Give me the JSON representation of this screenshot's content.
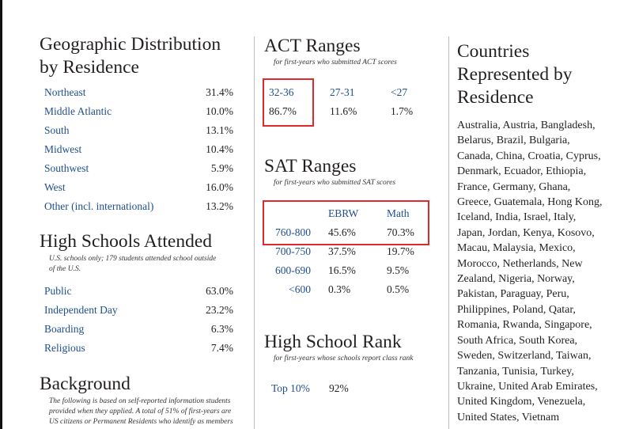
{
  "geo": {
    "title_line1": "Geographic Distribution",
    "title_line2": "by Residence",
    "rows": [
      {
        "label": "Northeast",
        "value": "31.4%"
      },
      {
        "label": "Middle Atlantic",
        "value": "10.0%"
      },
      {
        "label": "South",
        "value": "13.1%"
      },
      {
        "label": "Midwest",
        "value": "10.4%"
      },
      {
        "label": "Southwest",
        "value": "5.9%"
      },
      {
        "label": "West",
        "value": "16.0%"
      },
      {
        "label": "Other (incl. international)",
        "value": "13.2%"
      }
    ]
  },
  "hs": {
    "title": "High Schools Attended",
    "note_line1": "U.S. schools only; 179 students attended school outside",
    "note_line2": "of the U.S.",
    "rows": [
      {
        "label": "Public",
        "value": "63.0%"
      },
      {
        "label": "Independent Day",
        "value": "23.2%"
      },
      {
        "label": "Boarding",
        "value": "6.3%"
      },
      {
        "label": "Religious",
        "value": "7.4%"
      }
    ]
  },
  "background": {
    "title": "Background",
    "note_line1": "The following is based on self-reported information students",
    "note_line2": "provided when they applied. A total of 51% of first-years are",
    "note_line3": "US citizens or Permanent Residents who identify as members"
  },
  "act": {
    "title": "ACT Ranges",
    "note": "for first-years who submitted ACT scores",
    "ranges": [
      "32-36",
      "27-31",
      "<27"
    ],
    "values": [
      "86.7%",
      "11.6%",
      "1.7%"
    ]
  },
  "sat": {
    "title": "SAT Ranges",
    "note": "for first-years who submitted SAT scores",
    "headers": [
      "EBRW",
      "Math"
    ],
    "rows": [
      {
        "range": "760-800",
        "ebrw": "45.6%",
        "math": "70.3%"
      },
      {
        "range": "700-750",
        "ebrw": "37.5%",
        "math": "19.7%"
      },
      {
        "range": "600-690",
        "ebrw": "16.5%",
        "math": "9.5%"
      },
      {
        "range": "<600",
        "ebrw": "0.3%",
        "math": "0.5%"
      }
    ]
  },
  "rank": {
    "title": "High School Rank",
    "note": "for first-years whose schools report class rank",
    "label": "Top 10%",
    "value": "92%"
  },
  "countries": {
    "title_line1": "Countries",
    "title_line2": "Represented by",
    "title_line3": "Residence",
    "lines": [
      "Australia, Austria, Bangladesh,",
      "Belarus, Brazil, Bulgaria,",
      "Canada, China, Croatia, Cyprus,",
      "Denmark, Ecuador, Ethiopia,",
      "France, Germany, Ghana,",
      "Greece, Guatemala, Hong Kong,",
      "Iceland, India, Israel, Italy,",
      "Japan, Jordan, Kenya, Kosovo,",
      "Macau, Malaysia, Mexico,",
      "Morocco, Netherlands, New",
      "Zealand, Nigeria, Norway,",
      "Pakistan, Paraguay, Peru,",
      "Philippines, Poland, Qatar,",
      "Romania, Rwanda, Singapore,",
      "South Africa, South Korea,",
      "Sweden, Switzerland, Taiwan,",
      "Tanzania, Tunisia, Turkey,",
      "Ukraine, United Arab Emirates,",
      "United Kingdom, Venezuela,",
      "United States, Vietnam"
    ]
  },
  "colors": {
    "link": "#1f4e8c",
    "highlight": "#e0292e"
  }
}
